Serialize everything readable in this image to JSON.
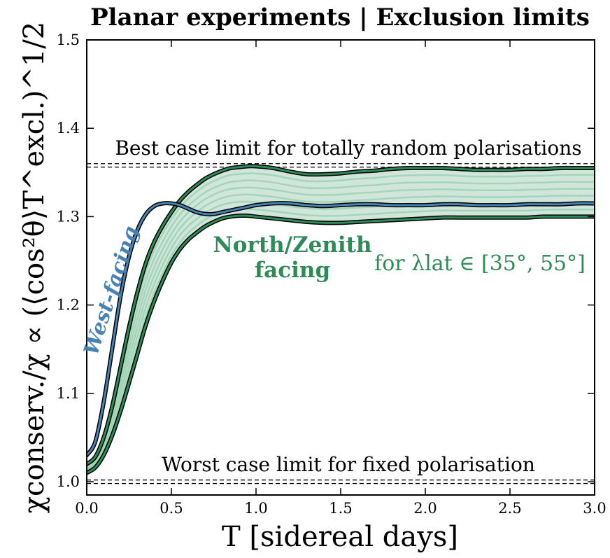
{
  "chart_data": {
    "type": "line",
    "title": "Planar experiments | Exclusion limits",
    "xlabel": "T [sidereal days]",
    "ylabel": "χconserv./χ ∝ (⟨cos²θ⟩T^excl.)^1/2",
    "xlim": [
      0.0,
      3.0
    ],
    "ylim": [
      0.985,
      1.5
    ],
    "x_ticks": [
      0.0,
      0.5,
      1.0,
      1.5,
      2.0,
      2.5,
      3.0
    ],
    "x_tick_labels": [
      "0.0",
      "0.5",
      "1.0",
      "1.5",
      "2.0",
      "2.5",
      "3.0"
    ],
    "y_ticks": [
      1.0,
      1.1,
      1.2,
      1.3,
      1.4,
      1.5
    ],
    "y_tick_labels": [
      "1.0",
      "1.1",
      "1.2",
      "1.3",
      "1.4",
      "1.5"
    ],
    "reference_lines": [
      {
        "y": 1.358,
        "label": "Best case limit for totally random polarisations",
        "style": "double-dashed"
      },
      {
        "y": 1.0,
        "label": "Worst case limit for fixed polarisation",
        "style": "double-dashed"
      }
    ],
    "x": [
      0.0,
      0.05,
      0.1,
      0.15,
      0.2,
      0.25,
      0.3,
      0.35,
      0.4,
      0.45,
      0.5,
      0.55,
      0.6,
      0.65,
      0.7,
      0.75,
      0.8,
      0.85,
      0.9,
      0.95,
      1.0,
      1.1,
      1.2,
      1.3,
      1.4,
      1.5,
      1.6,
      1.7,
      1.8,
      1.9,
      2.0,
      2.1,
      2.2,
      2.3,
      2.4,
      2.5,
      2.6,
      2.7,
      2.8,
      2.9,
      3.0
    ],
    "series": [
      {
        "name": "West-facing",
        "color": "#4682b4",
        "values": [
          1.03,
          1.045,
          1.09,
          1.15,
          1.21,
          1.255,
          1.285,
          1.303,
          1.312,
          1.315,
          1.315,
          1.313,
          1.309,
          1.305,
          1.303,
          1.303,
          1.305,
          1.307,
          1.309,
          1.311,
          1.313,
          1.315,
          1.315,
          1.313,
          1.312,
          1.313,
          1.314,
          1.314,
          1.313,
          1.313,
          1.313,
          1.314,
          1.314,
          1.313,
          1.313,
          1.313,
          1.314,
          1.314,
          1.314,
          1.315,
          1.315
        ]
      },
      {
        "name": "North/Zenith facing (upper)",
        "color": "#2e8b57",
        "values": [
          1.02,
          1.028,
          1.05,
          1.085,
          1.13,
          1.175,
          1.215,
          1.248,
          1.272,
          1.29,
          1.305,
          1.318,
          1.328,
          1.336,
          1.343,
          1.348,
          1.352,
          1.355,
          1.356,
          1.357,
          1.357,
          1.355,
          1.351,
          1.348,
          1.348,
          1.349,
          1.351,
          1.352,
          1.354,
          1.355,
          1.355,
          1.355,
          1.354,
          1.353,
          1.353,
          1.353,
          1.354,
          1.354,
          1.355,
          1.355,
          1.355
        ]
      },
      {
        "name": "North/Zenith facing (lower)",
        "color": "#2e8b57",
        "values": [
          1.01,
          1.016,
          1.03,
          1.052,
          1.08,
          1.112,
          1.145,
          1.178,
          1.205,
          1.228,
          1.248,
          1.263,
          1.274,
          1.282,
          1.289,
          1.294,
          1.298,
          1.3,
          1.301,
          1.301,
          1.3,
          1.298,
          1.296,
          1.294,
          1.293,
          1.293,
          1.294,
          1.295,
          1.296,
          1.297,
          1.298,
          1.299,
          1.299,
          1.299,
          1.299,
          1.299,
          1.299,
          1.3,
          1.3,
          1.3,
          1.3
        ]
      }
    ],
    "band": {
      "name": "for λlat ∈ [35°, 55°]",
      "color": "#2e8b57",
      "inner_lines": 6
    },
    "annotations": {
      "north_zenith_line1": "North/Zenith",
      "north_zenith_line2": "facing",
      "lat_range": "for λlat ∈ [35°, 55°]",
      "west": "West-facing"
    },
    "grid": false
  }
}
